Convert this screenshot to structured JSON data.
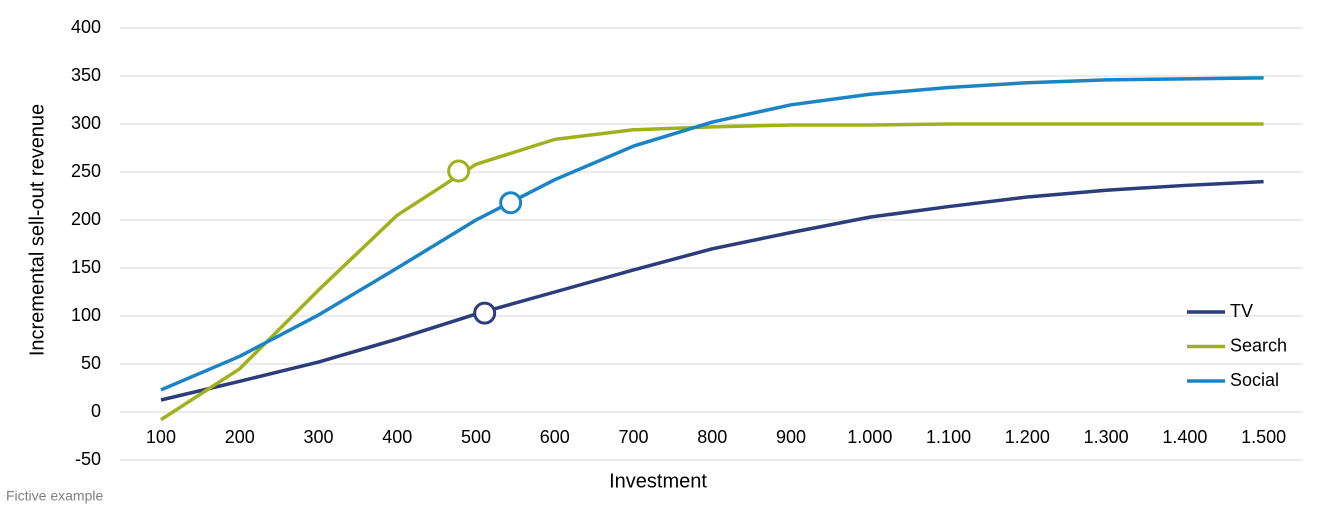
{
  "chart_data": {
    "type": "line",
    "x_label": "Investment",
    "y_label": "Incremental sell-out revenue",
    "note": "Fictive example",
    "x": [
      100,
      200,
      300,
      400,
      500,
      600,
      700,
      800,
      900,
      1000,
      1100,
      1200,
      1300,
      1400,
      1500
    ],
    "xlim": [
      48,
      1550
    ],
    "xticks": [
      100,
      200,
      300,
      400,
      500,
      600,
      700,
      800,
      900,
      {
        "value": 1000,
        "label": "1.000"
      },
      {
        "value": 1100,
        "label": "1.100"
      },
      {
        "value": 1200,
        "label": "1.200"
      },
      {
        "value": 1300,
        "label": "1.300"
      },
      {
        "value": 1400,
        "label": "1.400"
      },
      {
        "value": 1500,
        "label": "1.500"
      }
    ],
    "ylim": [
      -50,
      400
    ],
    "yticks": [
      -50,
      0,
      50,
      100,
      150,
      200,
      250,
      300,
      350,
      400
    ],
    "grid": true,
    "legend": "lower right",
    "series": [
      {
        "name": "TV",
        "color": "#2b3d7a",
        "values": [
          12.5,
          32,
          52,
          76,
          102,
          125,
          148,
          170,
          187,
          203,
          214,
          224,
          231,
          236,
          240
        ],
        "marker": {
          "x": 511,
          "y": 103
        }
      },
      {
        "name": "Search",
        "color": "#a0b11c",
        "values": [
          -8,
          45,
          127,
          205,
          258,
          284,
          294,
          297,
          299,
          299,
          300,
          300,
          300,
          300,
          300
        ],
        "marker": {
          "x": 478,
          "y": 251
        }
      },
      {
        "name": "Social",
        "color": "#1a84c4",
        "values": [
          23,
          58,
          101,
          150,
          200,
          242,
          277,
          302,
          320,
          331,
          338,
          343,
          346,
          347,
          348
        ],
        "marker": {
          "x": 544,
          "y": 218
        }
      }
    ]
  }
}
